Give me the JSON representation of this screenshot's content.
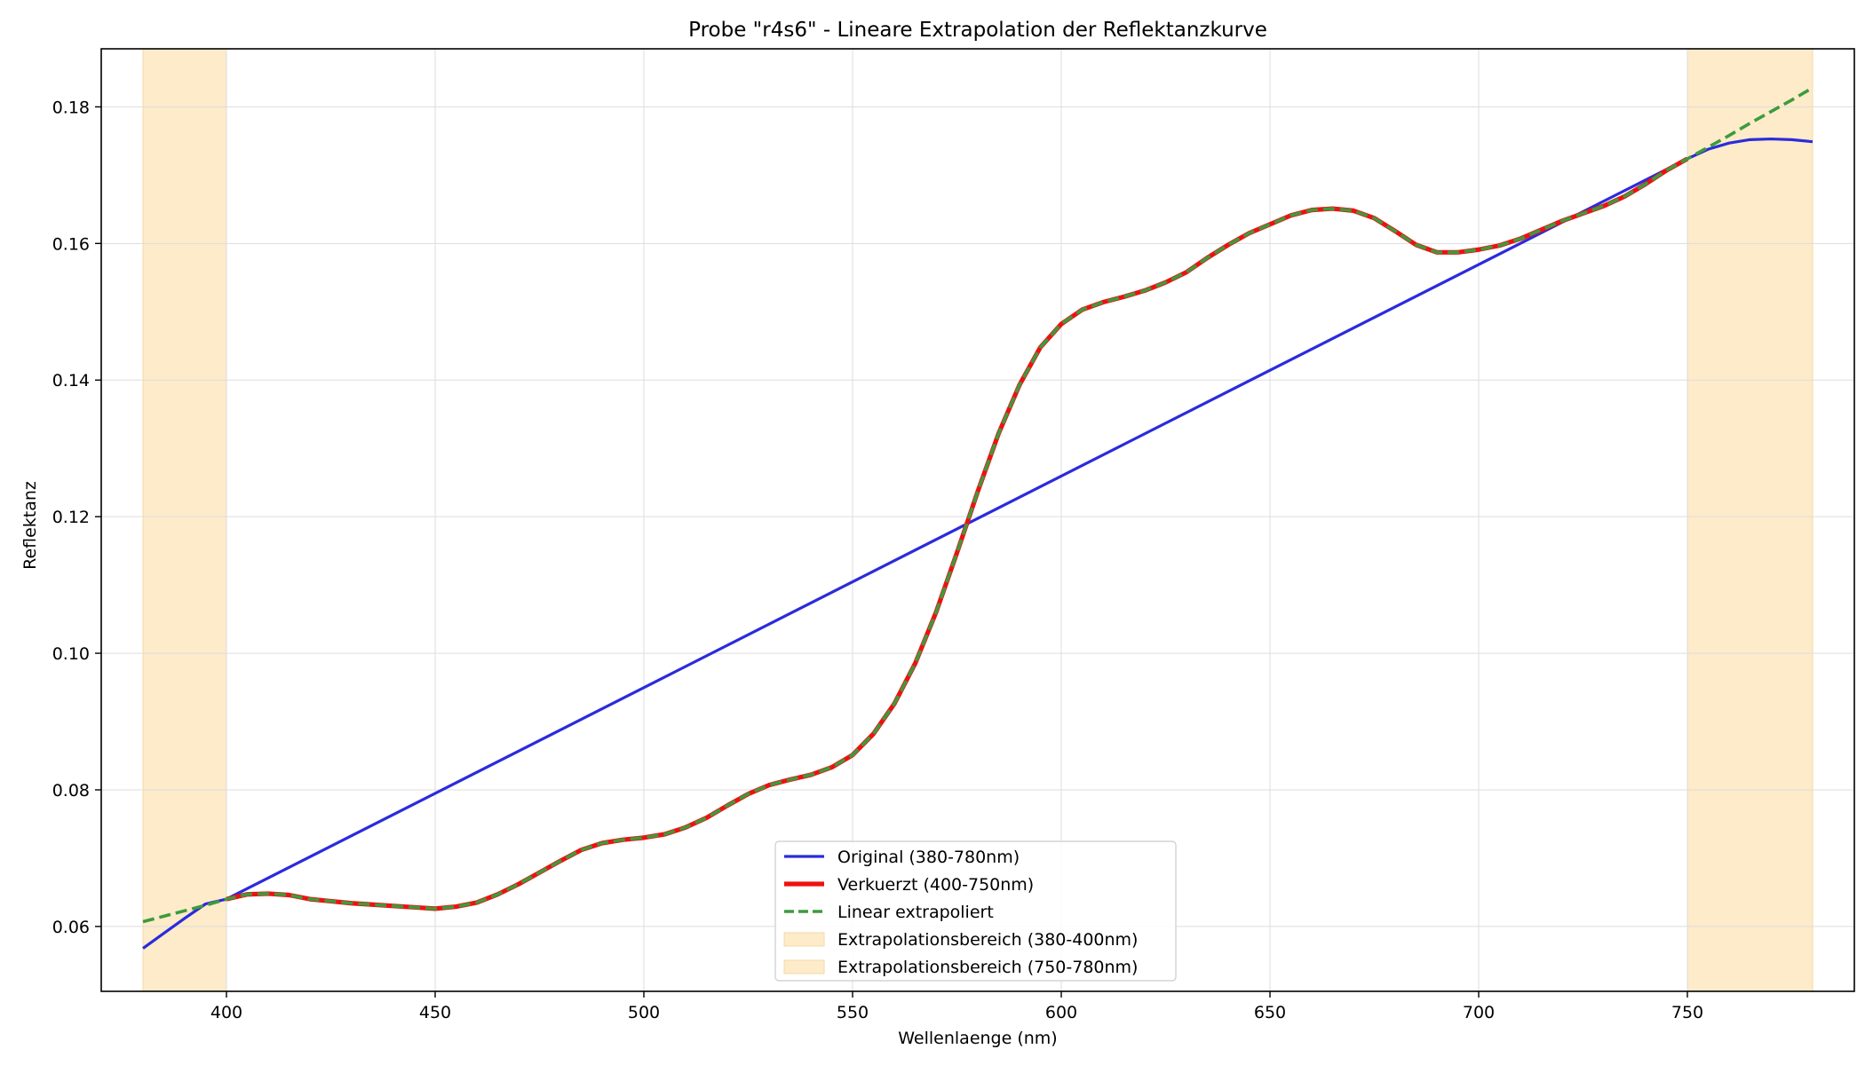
{
  "chart_data": {
    "type": "line",
    "title": "Probe \"r4s6\" - Lineare Extrapolation der Reflektanzkurve",
    "xlabel": "Wellenlaenge (nm)",
    "ylabel": "Reflektanz",
    "xlim": [
      370,
      790
    ],
    "ylim": [
      0.0505,
      0.1885
    ],
    "x_ticks": [
      400,
      450,
      500,
      550,
      600,
      650,
      700,
      750
    ],
    "y_ticks": [
      0.06,
      0.08,
      0.1,
      0.12,
      0.14,
      0.16,
      0.18
    ],
    "grid": true,
    "legend_position": "lower-center",
    "bands": [
      {
        "name": "Extrapolationsbereich (380-400nm)",
        "x": [
          380,
          400
        ],
        "color": "#fdebc9"
      },
      {
        "name": "Extrapolationsbereich (750-780nm)",
        "x": [
          750,
          780
        ],
        "color": "#fdebc9"
      }
    ],
    "series": [
      {
        "name": "Original (380-780nm)",
        "color": "#2b2bdc",
        "style": "solid",
        "x": [
          380,
          385,
          390,
          395,
          400,
          750,
          755,
          760,
          765,
          770,
          775,
          780
        ],
        "y": [
          0.0568,
          0.059,
          0.0612,
          0.0633,
          0.064,
          0.1724,
          0.1738,
          0.1747,
          0.1752,
          0.1753,
          0.1752,
          0.1749
        ]
      },
      {
        "name": "Verkuerzt (400-750nm)",
        "color": "#ee1111",
        "style": "solid",
        "x": [
          400,
          405,
          410,
          415,
          420,
          425,
          430,
          435,
          440,
          445,
          450,
          455,
          460,
          465,
          470,
          475,
          480,
          485,
          490,
          495,
          500,
          505,
          510,
          515,
          520,
          525,
          530,
          535,
          540,
          545,
          550,
          555,
          560,
          565,
          570,
          575,
          580,
          585,
          590,
          595,
          600,
          605,
          610,
          615,
          620,
          625,
          630,
          635,
          640,
          645,
          650,
          655,
          660,
          665,
          670,
          675,
          680,
          685,
          690,
          695,
          700,
          705,
          710,
          715,
          720,
          725,
          730,
          735,
          740,
          745,
          750
        ],
        "y": [
          0.064,
          0.0647,
          0.0648,
          0.0646,
          0.064,
          0.0637,
          0.0634,
          0.0632,
          0.063,
          0.0628,
          0.0626,
          0.0629,
          0.0635,
          0.0647,
          0.0662,
          0.0679,
          0.0696,
          0.0712,
          0.0722,
          0.0727,
          0.073,
          0.0735,
          0.0745,
          0.0759,
          0.0777,
          0.0794,
          0.0807,
          0.0815,
          0.0822,
          0.0833,
          0.0851,
          0.0882,
          0.0926,
          0.0985,
          0.106,
          0.1147,
          0.1237,
          0.1322,
          0.1393,
          0.1448,
          0.1482,
          0.1503,
          0.1514,
          0.1522,
          0.1531,
          0.1543,
          0.1558,
          0.1579,
          0.1598,
          0.1615,
          0.1628,
          0.1641,
          0.1649,
          0.1651,
          0.1648,
          0.1637,
          0.1618,
          0.1598,
          0.1587,
          0.1587,
          0.1591,
          0.1597,
          0.1607,
          0.162,
          0.1633,
          0.1644,
          0.1655,
          0.1669,
          0.1687,
          0.1707,
          0.1724
        ]
      },
      {
        "name": "Linear extrapoliert",
        "color": "#3d9b3d",
        "style": "dashed",
        "x": [
          380,
          385,
          390,
          395,
          400,
          405,
          410,
          415,
          420,
          425,
          430,
          435,
          440,
          445,
          450,
          455,
          460,
          465,
          470,
          475,
          480,
          485,
          490,
          495,
          500,
          505,
          510,
          515,
          520,
          525,
          530,
          535,
          540,
          545,
          550,
          555,
          560,
          565,
          570,
          575,
          580,
          585,
          590,
          595,
          600,
          605,
          610,
          615,
          620,
          625,
          630,
          635,
          640,
          645,
          650,
          655,
          660,
          665,
          670,
          675,
          680,
          685,
          690,
          695,
          700,
          705,
          710,
          715,
          720,
          725,
          730,
          735,
          740,
          745,
          750,
          755,
          760,
          765,
          770,
          775,
          780
        ],
        "y": [
          0.0607,
          0.0615,
          0.0623,
          0.0631,
          0.064,
          0.0647,
          0.0648,
          0.0646,
          0.064,
          0.0637,
          0.0634,
          0.0632,
          0.063,
          0.0628,
          0.0626,
          0.0629,
          0.0635,
          0.0647,
          0.0662,
          0.0679,
          0.0696,
          0.0712,
          0.0722,
          0.0727,
          0.073,
          0.0735,
          0.0745,
          0.0759,
          0.0777,
          0.0794,
          0.0807,
          0.0815,
          0.0822,
          0.0833,
          0.0851,
          0.0882,
          0.0926,
          0.0985,
          0.106,
          0.1147,
          0.1237,
          0.1322,
          0.1393,
          0.1448,
          0.1482,
          0.1503,
          0.1514,
          0.1522,
          0.1531,
          0.1543,
          0.1558,
          0.1579,
          0.1598,
          0.1615,
          0.1628,
          0.1641,
          0.1649,
          0.1651,
          0.1648,
          0.1637,
          0.1618,
          0.1598,
          0.1587,
          0.1587,
          0.1591,
          0.1597,
          0.1607,
          0.162,
          0.1633,
          0.1644,
          0.1655,
          0.1669,
          0.1687,
          0.1707,
          0.1724,
          0.1741,
          0.1758,
          0.1776,
          0.1793,
          0.181,
          0.1828
        ]
      }
    ]
  }
}
